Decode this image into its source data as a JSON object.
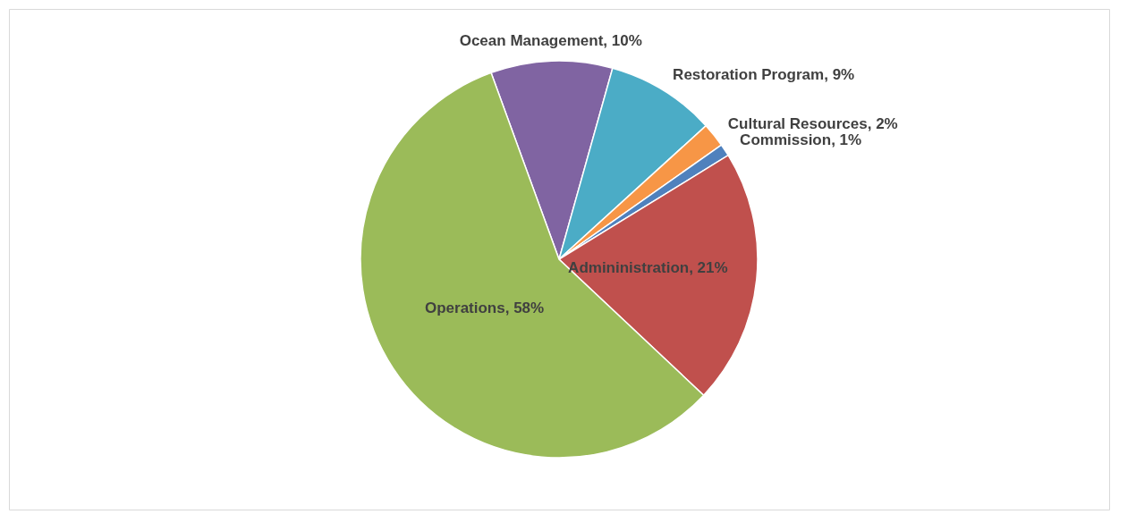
{
  "chart_data": {
    "type": "pie",
    "categories": [
      "Ocean Management",
      "Restoration Program",
      "Cultural Resources",
      "Commission",
      "Admininistration",
      "Operations"
    ],
    "values": [
      10,
      9,
      2,
      1,
      21,
      58
    ],
    "value_labels": [
      "10%",
      "9%",
      "2%",
      "1%",
      "21%",
      "58%"
    ],
    "colors": [
      "#8064a2",
      "#4bacc6",
      "#f79646",
      "#4f81bd",
      "#c0504d",
      "#9bbb59"
    ]
  }
}
